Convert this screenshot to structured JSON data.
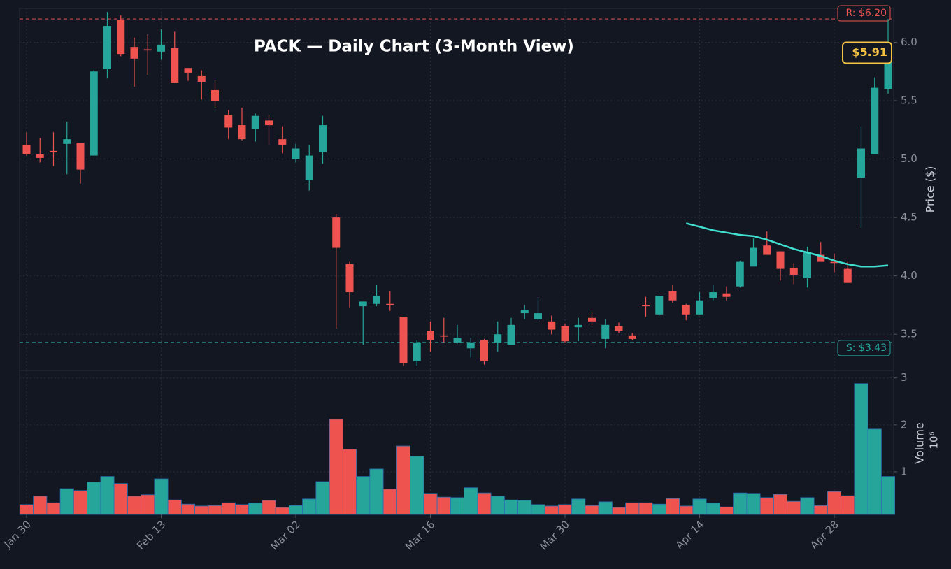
{
  "chart_data": {
    "type": "candlestick",
    "title": "PACK — Daily Chart (3-Month View)",
    "categories": [
      "Jan 30",
      null,
      null,
      null,
      null,
      null,
      null,
      null,
      null,
      null,
      "Feb 13",
      null,
      null,
      null,
      null,
      null,
      null,
      null,
      null,
      null,
      "Mar 02",
      null,
      null,
      null,
      null,
      null,
      null,
      null,
      null,
      null,
      "Mar 16",
      null,
      null,
      null,
      null,
      null,
      null,
      null,
      null,
      null,
      "Mar 30",
      null,
      null,
      null,
      null,
      null,
      null,
      null,
      null,
      null,
      "Apr 14",
      null,
      null,
      null,
      null,
      null,
      null,
      null,
      null,
      null,
      "Apr 28",
      null,
      null,
      null,
      null
    ],
    "open": [
      5.12,
      5.04,
      5.07,
      5.13,
      5.14,
      5.03,
      5.77,
      6.19,
      5.96,
      5.94,
      5.92,
      5.95,
      5.78,
      5.71,
      5.59,
      5.38,
      5.29,
      5.26,
      5.33,
      5.17,
      5.0,
      4.82,
      5.06,
      4.5,
      4.1,
      3.74,
      3.76,
      3.76,
      3.65,
      3.27,
      3.53,
      3.49,
      3.43,
      3.38,
      3.45,
      3.43,
      3.41,
      3.68,
      3.63,
      3.61,
      3.57,
      3.56,
      3.64,
      3.46,
      3.57,
      3.49,
      3.75,
      3.67,
      3.87,
      3.75,
      3.67,
      3.81,
      3.85,
      3.91,
      4.08,
      4.26,
      4.21,
      4.07,
      3.98,
      4.18,
      4.12,
      4.06,
      4.84,
      5.04,
      5.6
    ],
    "high": [
      5.23,
      5.18,
      5.23,
      5.32,
      5.14,
      5.76,
      6.26,
      6.23,
      6.04,
      6.07,
      6.11,
      6.09,
      5.78,
      5.76,
      5.68,
      5.42,
      5.44,
      5.39,
      5.38,
      5.28,
      5.13,
      5.12,
      5.37,
      4.53,
      4.12,
      3.78,
      3.92,
      3.87,
      3.65,
      3.45,
      3.61,
      3.64,
      3.58,
      3.47,
      3.46,
      3.61,
      3.64,
      3.75,
      3.82,
      3.66,
      3.59,
      3.64,
      3.69,
      3.63,
      3.6,
      3.51,
      3.82,
      3.83,
      3.92,
      3.76,
      3.86,
      3.92,
      3.91,
      4.13,
      4.32,
      4.38,
      4.21,
      4.11,
      4.25,
      4.29,
      4.19,
      4.12,
      5.28,
      5.7,
      6.2
    ],
    "low": [
      5.03,
      4.97,
      4.94,
      4.87,
      4.79,
      5.03,
      5.69,
      5.88,
      5.62,
      5.72,
      5.85,
      5.65,
      5.67,
      5.51,
      5.44,
      5.17,
      5.16,
      5.15,
      5.12,
      5.05,
      4.97,
      4.73,
      4.96,
      3.55,
      3.73,
      3.41,
      3.74,
      3.7,
      3.23,
      3.23,
      3.35,
      3.43,
      3.42,
      3.3,
      3.24,
      3.35,
      3.41,
      3.63,
      3.62,
      3.5,
      3.43,
      3.44,
      3.58,
      3.38,
      3.51,
      3.45,
      3.65,
      3.66,
      3.77,
      3.62,
      3.67,
      3.79,
      3.79,
      3.9,
      4.08,
      4.18,
      3.96,
      3.93,
      3.9,
      4.12,
      4.03,
      3.94,
      4.41,
      5.04,
      5.56
    ],
    "close": [
      5.04,
      5.01,
      5.06,
      5.17,
      4.91,
      5.75,
      6.14,
      5.9,
      5.86,
      5.93,
      5.98,
      5.65,
      5.74,
      5.66,
      5.5,
      5.27,
      5.17,
      5.37,
      5.29,
      5.12,
      5.09,
      5.03,
      5.29,
      4.24,
      3.86,
      3.78,
      3.83,
      3.75,
      3.25,
      3.43,
      3.45,
      3.48,
      3.47,
      3.43,
      3.27,
      3.5,
      3.58,
      3.71,
      3.68,
      3.54,
      3.44,
      3.58,
      3.61,
      3.58,
      3.53,
      3.46,
      3.74,
      3.83,
      3.79,
      3.67,
      3.79,
      3.86,
      3.82,
      4.12,
      4.24,
      4.18,
      4.06,
      4.01,
      4.2,
      4.12,
      4.11,
      3.94,
      5.09,
      5.61,
      5.91
    ],
    "up_color": "#26a69a",
    "down_color": "#ef5350",
    "ylim": [
      3.19,
      6.29
    ],
    "yticks": [
      3.5,
      {
        "value": 4,
        "label": "4.0"
      },
      4.5,
      {
        "value": 5,
        "label": "5.0"
      },
      5.5,
      {
        "value": 6,
        "label": "6.0"
      }
    ],
    "ylabel": "Price ($)",
    "grid": true,
    "moving_average": {
      "color": "#40e0d0",
      "values": [
        null,
        null,
        null,
        null,
        null,
        null,
        null,
        null,
        null,
        null,
        null,
        null,
        null,
        null,
        null,
        null,
        null,
        null,
        null,
        null,
        null,
        null,
        null,
        null,
        null,
        null,
        null,
        null,
        null,
        null,
        null,
        null,
        null,
        null,
        null,
        null,
        null,
        null,
        null,
        null,
        null,
        null,
        null,
        null,
        null,
        null,
        null,
        null,
        null,
        4.45,
        4.42,
        4.39,
        4.37,
        4.35,
        4.34,
        4.31,
        4.27,
        4.23,
        4.2,
        4.17,
        4.13,
        4.1,
        4.08,
        4.08,
        4.09
      ]
    },
    "resistance": {
      "value": 6.2,
      "label": "R: $6.20",
      "color": "#ef5350"
    },
    "support": {
      "value": 3.43,
      "label": "S: $3.43",
      "color": "#26a69a"
    },
    "last_price": {
      "value": 5.91,
      "label": "$5.91",
      "color": "#f5c242"
    },
    "volume": {
      "values": [
        0.3,
        0.48,
        0.34,
        0.64,
        0.6,
        0.78,
        0.9,
        0.75,
        0.48,
        0.51,
        0.85,
        0.4,
        0.31,
        0.27,
        0.28,
        0.34,
        0.3,
        0.33,
        0.39,
        0.24,
        0.28,
        0.42,
        0.79,
        2.12,
        1.48,
        0.9,
        1.06,
        0.63,
        1.55,
        1.33,
        0.54,
        0.46,
        0.45,
        0.66,
        0.55,
        0.48,
        0.4,
        0.39,
        0.3,
        0.27,
        0.3,
        0.42,
        0.28,
        0.36,
        0.24,
        0.34,
        0.34,
        0.31,
        0.43,
        0.27,
        0.42,
        0.33,
        0.25,
        0.55,
        0.54,
        0.45,
        0.52,
        0.37,
        0.45,
        0.28,
        0.58,
        0.49,
        2.88,
        1.91,
        0.9
      ],
      "ylim": [
        0.09,
        3.16
      ],
      "yticks": [
        1,
        2,
        3
      ],
      "ylabel": "Volume",
      "scale_label": "10⁶"
    }
  }
}
